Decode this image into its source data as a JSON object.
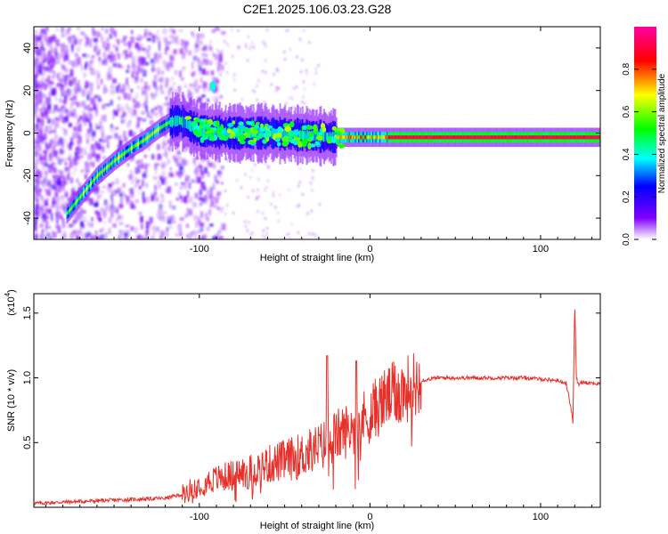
{
  "title": "C2E1.2025.106.03.23.G28",
  "spectrogram": {
    "xlabel": "Height of straight line (km)",
    "ylabel": "Frequency (Hz)",
    "xlim": [
      -197,
      135
    ],
    "ylim": [
      -50,
      50
    ],
    "xticks": [
      -100,
      0,
      100
    ],
    "yticks": [
      -40,
      -20,
      0,
      20,
      40
    ],
    "colorbar": {
      "label": "Normalized spectral amplitude",
      "range": [
        0,
        1
      ],
      "ticks": [
        "0.0",
        "0.2",
        "0.4",
        "0.6",
        "0.8"
      ],
      "colormap": [
        "#ffffff",
        "#8000ff",
        "#0000ff",
        "#00ffff",
        "#00ff00",
        "#ffff00",
        "#ff0000",
        "#ff00a0"
      ]
    }
  },
  "chart_data": [
    {
      "type": "heatmap",
      "xlabel": "Height of straight line (km)",
      "ylabel": "Frequency (Hz)",
      "xlim": [
        -197,
        135
      ],
      "ylim": [
        -50,
        50
      ],
      "ridge": {
        "description_units": "km vs Hz",
        "x": [
          -178,
          -170,
          -160,
          -150,
          -140,
          -132,
          -124,
          -118,
          -112,
          -100,
          -80,
          -60,
          -40,
          -20,
          0,
          20,
          50,
          100,
          135
        ],
        "y": [
          -38,
          -30,
          -20,
          -13,
          -7,
          -3,
          2,
          5,
          6,
          1,
          0,
          0,
          -1,
          -2,
          -2,
          -2,
          -2,
          -2,
          -2
        ]
      },
      "legend": "colorbar right"
    },
    {
      "type": "line",
      "xlabel": "Height of straight line (km)",
      "ylabel": "SNR (10 * v/v)",
      "yscale_label": "(x10^4)",
      "xlim": [
        -197,
        135
      ],
      "ylim": [
        0,
        1.65
      ],
      "xticks": [
        -100,
        0,
        100
      ],
      "yticks": [
        0.5,
        1.0,
        1.5
      ],
      "color": "#e8302a",
      "series": {
        "x": [
          -197,
          -180,
          -160,
          -140,
          -120,
          -110,
          -100,
          -90,
          -80,
          -70,
          -60,
          -50,
          -40,
          -30,
          -25,
          -20,
          -10,
          0,
          10,
          20,
          30,
          40,
          50,
          60,
          70,
          80,
          90,
          100,
          110,
          115,
          118,
          119,
          120,
          121,
          122,
          125,
          130,
          135
        ],
        "y": [
          0.03,
          0.04,
          0.05,
          0.06,
          0.07,
          0.1,
          0.18,
          0.22,
          0.25,
          0.28,
          0.33,
          0.36,
          0.4,
          0.46,
          0.5,
          0.55,
          0.62,
          0.72,
          0.85,
          0.9,
          0.98,
          1.0,
          1.0,
          1.0,
          1.0,
          1.0,
          1.0,
          0.99,
          0.98,
          0.96,
          0.75,
          0.65,
          1.6,
          1.0,
          0.95,
          0.97,
          0.96,
          0.95
        ]
      }
    }
  ],
  "snr": {
    "xlabel": "Height of straight line (km)",
    "ylabel": "SNR (10 * v/v)",
    "scale_label": "(x10",
    "scale_exp": "4",
    "xticks": [
      -100,
      0,
      100
    ],
    "yticks": [
      "0.5",
      "1.0",
      "1.5"
    ]
  }
}
